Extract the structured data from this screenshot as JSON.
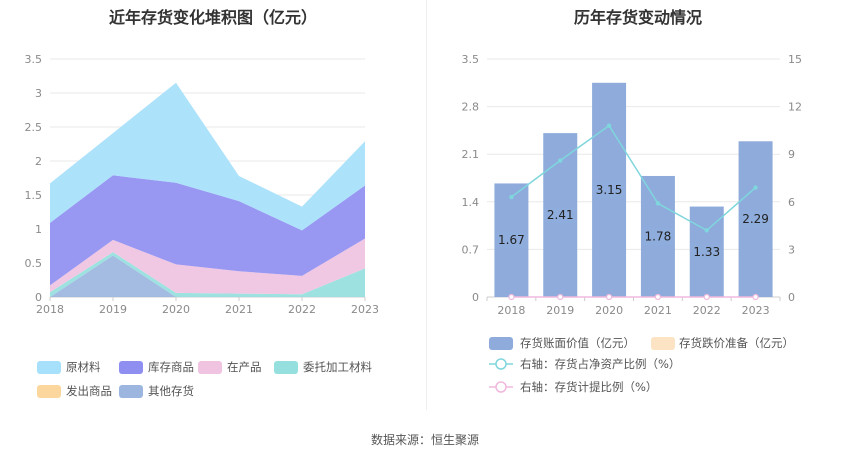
{
  "left_title": "近年存货变化堆积图（亿元）",
  "right_title": "历年存货变动情况",
  "source": "数据来源：恒生聚源",
  "chart_data": [
    {
      "type": "area",
      "stacked": true,
      "title": "近年存货变化堆积图（亿元）",
      "categories": [
        "2018",
        "2019",
        "2020",
        "2021",
        "2022",
        "2023"
      ],
      "ylim": [
        0,
        3.5
      ],
      "yticks": [
        "0",
        "0.5",
        "1",
        "1.5",
        "2",
        "2.5",
        "3",
        "3.5"
      ],
      "series": [
        {
          "name": "原材料",
          "color": "#a6e0fb",
          "values": [
            0.58,
            0.62,
            1.47,
            0.37,
            0.35,
            0.65
          ]
        },
        {
          "name": "库存商品",
          "color": "#8f8ff2",
          "values": [
            0.92,
            0.95,
            1.2,
            1.03,
            0.67,
            0.78
          ]
        },
        {
          "name": "在产品",
          "color": "#f0c3e1",
          "values": [
            0.1,
            0.18,
            0.42,
            0.33,
            0.27,
            0.44
          ]
        },
        {
          "name": "委托加工材料",
          "color": "#95dfde",
          "values": [
            0.07,
            0.05,
            0.06,
            0.05,
            0.04,
            0.42
          ]
        },
        {
          "name": "发出商品",
          "color": "#fbd79e",
          "values": [
            0,
            0,
            0,
            0,
            0,
            0
          ]
        },
        {
          "name": "其他存货",
          "color": "#9db6df",
          "values": [
            0,
            0.61,
            0,
            0,
            0,
            0
          ]
        }
      ],
      "legend_position": "bottom",
      "grid": true
    },
    {
      "type": "bar",
      "title": "历年存货变动情况",
      "categories": [
        "2018",
        "2019",
        "2020",
        "2021",
        "2022",
        "2023"
      ],
      "ylim": [
        0,
        3.5
      ],
      "yticks": [
        "0",
        "0.7",
        "1.4",
        "2.1",
        "2.8",
        "3.5"
      ],
      "y2lim": [
        0,
        15
      ],
      "y2ticks": [
        "0",
        "3",
        "6",
        "9",
        "12",
        "15"
      ],
      "series": [
        {
          "name": "存货账面价值（亿元）",
          "color": "#8eabdc",
          "type": "bar",
          "values": [
            1.67,
            2.41,
            3.15,
            1.78,
            1.33,
            2.29
          ],
          "labels": [
            "1.67",
            "2.41",
            "3.15",
            "1.78",
            "1.33",
            "2.29"
          ]
        },
        {
          "name": "存货跌价准备（亿元）",
          "color": "#fce3c4",
          "type": "bar",
          "values": [
            0,
            0,
            0,
            0,
            0,
            0
          ]
        },
        {
          "name": "右轴：存货占净资产比例（%）",
          "color": "#7fd6dc",
          "type": "line",
          "axis": "right",
          "values": [
            6.3,
            8.6,
            10.8,
            5.9,
            4.2,
            6.9
          ]
        },
        {
          "name": "右轴：存货计提比例（%）",
          "color": "#f0b8dd",
          "type": "line",
          "axis": "right",
          "values": [
            0,
            0,
            0,
            0,
            0,
            0
          ]
        }
      ],
      "legend_position": "bottom",
      "grid": true
    }
  ]
}
